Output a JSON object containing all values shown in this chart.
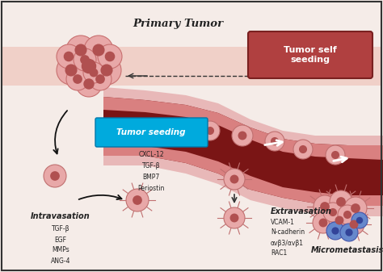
{
  "background_color": "#f5ece8",
  "border_color": "#333333",
  "primary_tumor_label": "Primary Tumor",
  "tumor_seeding_label": "Tumor seeding",
  "tumor_seeding_box_color": "#00aadd",
  "tumor_seeding_molecules": [
    "CXCL-12",
    "TGF-β",
    "BMP7",
    "Periostin"
  ],
  "intravasation_label": "Intravasation",
  "intravasation_molecules": [
    "TGF-β",
    "EGF",
    "MMPs",
    "ANG-4"
  ],
  "extravasation_label": "Extravasation",
  "extravasation_molecules": [
    "VCAM-1",
    "N-cadherin",
    "αvβ3/αvβ1",
    "RAC1"
  ],
  "micrometastasis_label": "Micrometastasis",
  "tumor_self_seeding_label": "Tumor self\nseeding",
  "vessel_dark": "#7a1515",
  "vessel_wall": "#d98080",
  "vessel_outer": "#e8b8b8",
  "tissue_band": "#f0d0c8",
  "cell_pink": "#e89090",
  "cell_pink_dark": "#d06060",
  "cell_nucleus": "#c04040",
  "blue_cell": "#6688cc",
  "blue_nucleus": "#334499"
}
